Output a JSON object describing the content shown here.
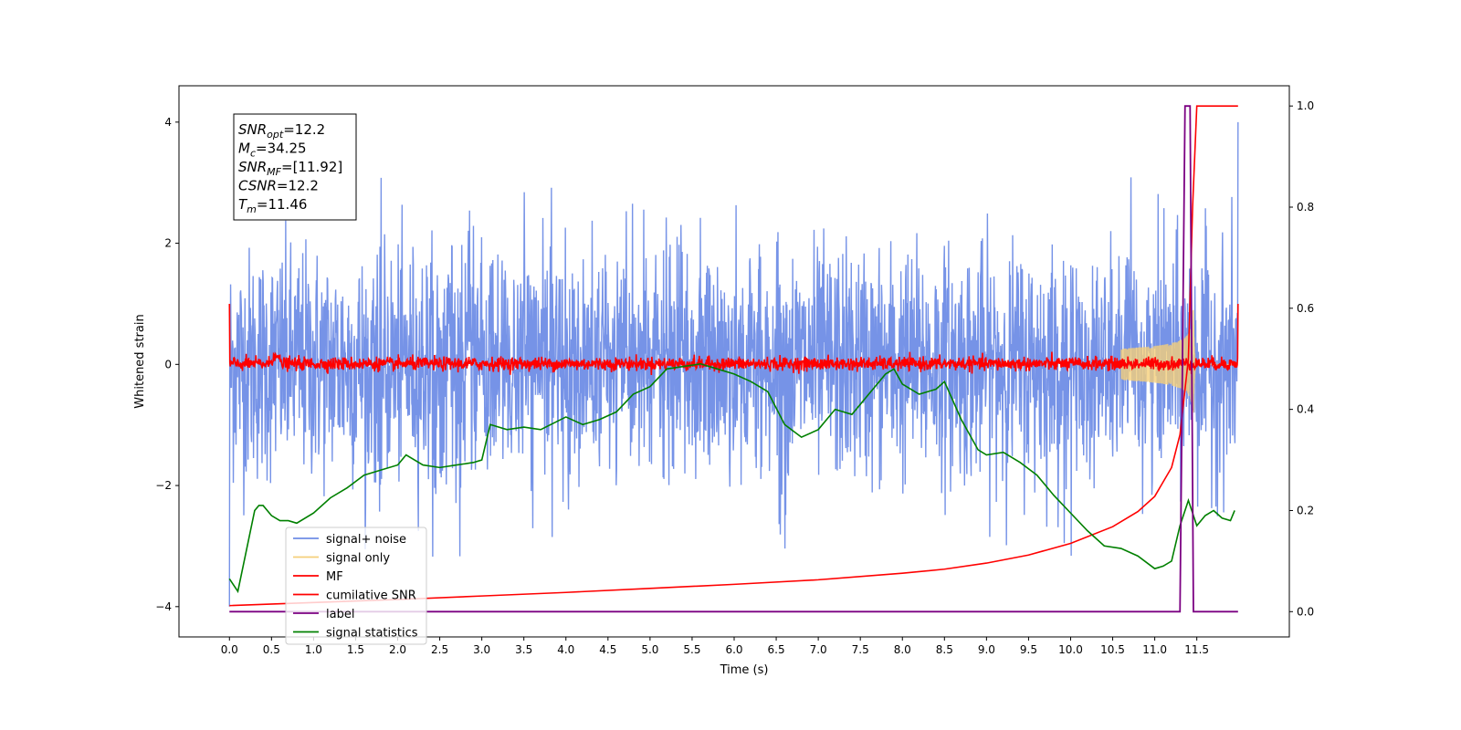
{
  "chart_data": {
    "type": "line",
    "xlabel": "Time (s)",
    "ylabel": "Whitened strain",
    "xlim": [
      -0.6,
      12.6
    ],
    "ylim": [
      -4.5,
      4.6
    ],
    "y2lim": [
      -0.05,
      1.04
    ],
    "x_ticks": [
      0.0,
      0.5,
      1.0,
      1.5,
      2.0,
      2.5,
      3.0,
      3.5,
      4.0,
      4.5,
      5.0,
      5.5,
      6.0,
      6.5,
      7.0,
      7.5,
      8.0,
      8.5,
      9.0,
      9.5,
      10.0,
      10.5,
      11.0,
      11.5
    ],
    "x_tick_labels": [
      "0.0",
      "0.5",
      "1.0",
      "1.5",
      "2.0",
      "2.5",
      "3.0",
      "3.5",
      "4.0",
      "4.5",
      "5.0",
      "5.5",
      "6.0",
      "6.5",
      "7.0",
      "7.5",
      "8.0",
      "8.5",
      "9.0",
      "9.5",
      "10.0",
      "10.5",
      "11.0",
      "11.5"
    ],
    "y_ticks": [
      -4,
      -2,
      0,
      2,
      4
    ],
    "y_tick_labels": [
      "−4",
      "−2",
      "0",
      "2",
      "4"
    ],
    "y2_ticks": [
      0.0,
      0.2,
      0.4,
      0.6,
      0.8,
      1.0
    ],
    "y2_tick_labels": [
      "0.0",
      "0.2",
      "0.4",
      "0.6",
      "0.8",
      "1.0"
    ],
    "grid": false,
    "legend_position": "lower-left",
    "annotation": {
      "position": "upper-left",
      "lines": [
        {
          "base": "SNR",
          "sub": "opt",
          "value": "=12.2"
        },
        {
          "base": "M",
          "sub": "c",
          "value": "=34.25"
        },
        {
          "base": "SNR",
          "sub": "MF",
          "value": "=[11.92]"
        },
        {
          "base": "CSNR",
          "sub": "",
          "value": "=12.2"
        },
        {
          "base": "T",
          "sub": "m",
          "value": "=11.46"
        }
      ]
    },
    "series": [
      {
        "name": "signal+ noise",
        "axis": "left",
        "color": "#6f8de6",
        "kind": "noise",
        "x_range": [
          0.0,
          11.99
        ],
        "amplitude_range": [
          -3.2,
          3.1
        ],
        "note_points": [
          [
            0.0,
            -4.0
          ],
          [
            11.99,
            4.0
          ]
        ]
      },
      {
        "name": "signal only",
        "axis": "left",
        "color": "#f5cf7a",
        "kind": "chirp",
        "t_merge": 11.46,
        "peak_amplitude": 1.0
      },
      {
        "name": "MF",
        "axis": "left",
        "color": "#ff0000",
        "kind": "noise",
        "x_range": [
          0.0,
          11.99
        ],
        "amplitude_range": [
          -0.15,
          0.35
        ],
        "note_points": [
          [
            0.0,
            1.0
          ],
          [
            0.02,
            -0.1
          ],
          [
            0.55,
            0.38
          ],
          [
            11.99,
            1.0
          ]
        ]
      },
      {
        "name": "cumilative SNR",
        "axis": "right",
        "color": "#ff0000",
        "x": [
          0.0,
          1.0,
          2.0,
          3.0,
          4.0,
          5.0,
          6.0,
          7.0,
          8.0,
          8.5,
          9.0,
          9.5,
          10.0,
          10.5,
          10.8,
          11.0,
          11.2,
          11.3,
          11.4,
          11.45,
          11.5,
          11.99
        ],
        "values": [
          0.012,
          0.018,
          0.024,
          0.031,
          0.038,
          0.046,
          0.054,
          0.063,
          0.076,
          0.084,
          0.096,
          0.112,
          0.135,
          0.168,
          0.198,
          0.228,
          0.285,
          0.35,
          0.5,
          0.8,
          1.0,
          1.0
        ]
      },
      {
        "name": "label",
        "axis": "right",
        "color": "#7b0082",
        "x": [
          0.0,
          11.3,
          11.36,
          11.42,
          11.46,
          11.99
        ],
        "values": [
          0.0,
          0.0,
          1.0,
          1.0,
          0.0,
          0.0
        ]
      },
      {
        "name": "signal statistics",
        "axis": "right",
        "color": "#008000",
        "x": [
          0.0,
          0.1,
          0.2,
          0.3,
          0.35,
          0.4,
          0.5,
          0.6,
          0.7,
          0.8,
          1.0,
          1.2,
          1.4,
          1.6,
          1.8,
          2.0,
          2.1,
          2.3,
          2.5,
          2.7,
          2.9,
          3.0,
          3.1,
          3.3,
          3.5,
          3.7,
          4.0,
          4.2,
          4.4,
          4.6,
          4.8,
          5.0,
          5.2,
          5.4,
          5.6,
          5.8,
          6.0,
          6.2,
          6.4,
          6.6,
          6.8,
          7.0,
          7.2,
          7.4,
          7.6,
          7.8,
          7.9,
          8.0,
          8.2,
          8.4,
          8.5,
          8.7,
          8.9,
          9.0,
          9.2,
          9.4,
          9.6,
          9.8,
          10.0,
          10.2,
          10.4,
          10.6,
          10.8,
          11.0,
          11.1,
          11.2,
          11.3,
          11.4,
          11.5,
          11.6,
          11.7,
          11.8,
          11.9,
          11.95
        ],
        "values": [
          0.065,
          0.04,
          0.12,
          0.2,
          0.21,
          0.21,
          0.19,
          0.18,
          0.18,
          0.175,
          0.195,
          0.225,
          0.245,
          0.27,
          0.28,
          0.29,
          0.31,
          0.29,
          0.285,
          0.29,
          0.295,
          0.3,
          0.37,
          0.36,
          0.365,
          0.36,
          0.385,
          0.37,
          0.38,
          0.395,
          0.43,
          0.445,
          0.48,
          0.485,
          0.49,
          0.48,
          0.47,
          0.455,
          0.435,
          0.37,
          0.345,
          0.36,
          0.4,
          0.39,
          0.43,
          0.47,
          0.48,
          0.45,
          0.43,
          0.44,
          0.455,
          0.38,
          0.32,
          0.31,
          0.315,
          0.295,
          0.27,
          0.23,
          0.195,
          0.16,
          0.13,
          0.125,
          0.11,
          0.085,
          0.09,
          0.1,
          0.17,
          0.22,
          0.17,
          0.19,
          0.2,
          0.185,
          0.18,
          0.2
        ]
      }
    ]
  }
}
